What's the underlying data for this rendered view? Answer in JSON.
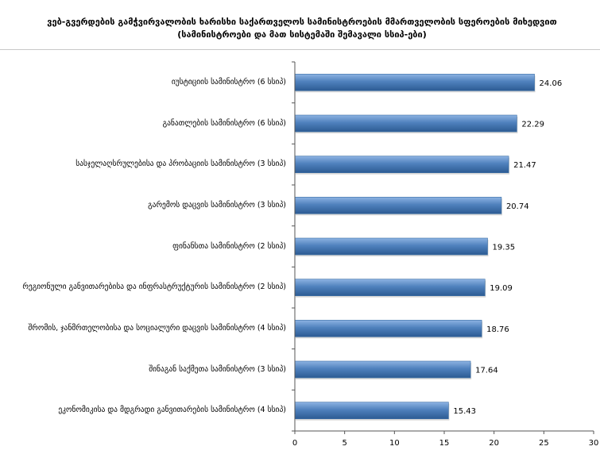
{
  "title": "ვებ-გვერდების გამჭვირვალობის ხარისხი საქართველოს სამინისტროების მმართველობის სფეროების მიხედვით (სამინისტროები და მათ სისტემაში შემავალი სსიპ-ები)",
  "chart_data": {
    "type": "bar",
    "orientation": "horizontal",
    "title": "ვებ-გვერდების გამჭვირვალობის ხარისხი საქართველოს სამინისტროების მმართველობის სფეროების მიხედვით (სამინისტროები და მათ სისტემაში შემავალი სსიპ-ები)",
    "categories": [
      "იუსტიციის სამინისტრო (6 სსიპ)",
      "განათლების სამინისტრო (6 სსიპ)",
      "სასჯელაღსრულებისა და პრობაციის სამინისტრო (3 სსიპ)",
      "გარემოს დაცვის სამინისტრო (3 სსიპ)",
      "ფინანსთა სამინისტრო (2 სსიპ)",
      "რეგიონული განვითარებისა და ინფრასტრუქტურის სამინისტრო (2 სსიპ)",
      "შრომის, ჯანმრთელობისა და სოციალური დაცვის სამინისტრო (4 სსიპ)",
      "შინაგან საქმეთა სამინისტრო (3 სსიპ)",
      "ეკონომიკისა და მდგრადი განვითარების სამინისტრო (4 სსიპ)"
    ],
    "values": [
      24.06,
      22.29,
      21.47,
      20.74,
      19.35,
      19.09,
      18.76,
      17.64,
      15.43
    ],
    "value_labels": [
      "24.06",
      "22.29",
      "21.47",
      "20.74",
      "19.35",
      "19.09",
      "18.76",
      "17.64",
      "15.43"
    ],
    "xlim": [
      0,
      30
    ],
    "xticks": [
      "0",
      "5",
      "10",
      "15",
      "20",
      "25",
      "30"
    ],
    "grid": false,
    "legend": "none",
    "bar_color": "#4f81bd",
    "bar_color_light": "#8db3e2",
    "bar_color_dark": "#2c5b93"
  }
}
